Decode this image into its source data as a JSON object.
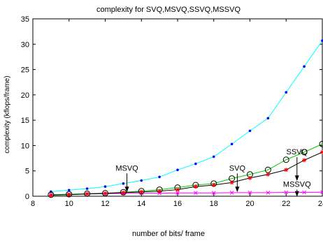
{
  "chart_data": {
    "type": "line",
    "title": "complexity for SVQ,MSVQ,SSVQ,MSSVQ",
    "xlabel": "number of bits/ frame",
    "ylabel": "complexity (kflops/frame)",
    "xlim": [
      8,
      24
    ],
    "ylim": [
      0,
      35
    ],
    "xticks": [
      8,
      10,
      12,
      14,
      16,
      18,
      20,
      22,
      24
    ],
    "yticks": [
      0,
      5,
      10,
      15,
      20,
      25,
      30,
      35
    ],
    "grid": false,
    "x": [
      9,
      10,
      11,
      12,
      13,
      14,
      15,
      16,
      17,
      18,
      19,
      20,
      21,
      22,
      23,
      24
    ],
    "series": [
      {
        "name": "SVQ",
        "color": "#00ffff",
        "marker": "dot",
        "values": [
          0.9,
          1.2,
          1.5,
          1.9,
          2.5,
          3.1,
          3.8,
          5.2,
          6.4,
          7.8,
          10.3,
          12.9,
          15.4,
          20.5,
          25.6,
          30.7
        ]
      },
      {
        "name": "MSVQ",
        "color": "#ff00ff",
        "marker": "x",
        "values": [
          0.3,
          0.4,
          0.45,
          0.5,
          0.55,
          0.6,
          0.6,
          0.65,
          0.65,
          0.65,
          0.7,
          0.7,
          0.7,
          0.75,
          0.75,
          0.8
        ]
      },
      {
        "name": "SSVQ",
        "color": "#00cc00",
        "marker": "circle",
        "values": [
          0.3,
          0.4,
          0.5,
          0.6,
          0.8,
          1.0,
          1.3,
          1.7,
          2.2,
          2.5,
          3.5,
          4.3,
          5.2,
          7.2,
          8.7,
          10.3
        ]
      },
      {
        "name": "MSSVQ",
        "color": "#000000",
        "marker": "star",
        "marker_color": "#ff0000",
        "values": [
          0.2,
          0.3,
          0.45,
          0.55,
          0.7,
          0.85,
          1.0,
          1.3,
          1.9,
          2.2,
          2.7,
          3.6,
          4.3,
          5.2,
          7.1,
          8.7
        ]
      }
    ],
    "annotations": [
      {
        "text": "MSVQ",
        "label_at": [
          13.2,
          4.5
        ],
        "arrow_to": [
          13.2,
          0.8
        ]
      },
      {
        "text": "SVQ",
        "label_at": [
          19.3,
          4.5
        ],
        "arrow_to": [
          19.3,
          0.8
        ]
      },
      {
        "text": "SSVQ",
        "label_at": [
          22.6,
          7.7
        ],
        "arrow_to": [
          22.6,
          3.0
        ]
      },
      {
        "text": "MSSVQ",
        "label_at": [
          22.6,
          1.3
        ],
        "arrow_to": [
          22.6,
          -0.1
        ]
      }
    ]
  }
}
